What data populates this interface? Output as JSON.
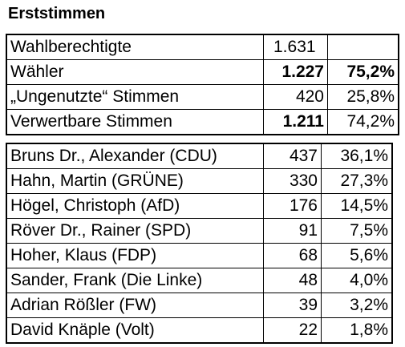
{
  "heading": "Erststimmen",
  "summary": [
    {
      "label": "Wahlberechtigte",
      "count": "1.631",
      "percent": "",
      "bold_count": false,
      "bold_percent": false
    },
    {
      "label": "Wähler",
      "count": "1.227",
      "percent": "75,2%",
      "bold_count": true,
      "bold_percent": true
    },
    {
      "label": "„Ungenutzte“ Stimmen",
      "count": "420",
      "percent": "25,8%",
      "bold_count": false,
      "bold_percent": false
    },
    {
      "label": "Verwertbare Stimmen",
      "count": "1.211",
      "percent": "74,2%",
      "bold_count": true,
      "bold_percent": false
    }
  ],
  "candidates": [
    {
      "label": "Bruns Dr., Alexander (CDU)",
      "count": "437",
      "percent": "36,1%"
    },
    {
      "label": "Hahn, Martin (GRÜNE)",
      "count": "330",
      "percent": "27,3%"
    },
    {
      "label": "Högel, Christoph (AfD)",
      "count": "176",
      "percent": "14,5%"
    },
    {
      "label": "Röver Dr., Rainer (SPD)",
      "count": "91",
      "percent": "7,5%"
    },
    {
      "label": "Hoher, Klaus (FDP)",
      "count": "68",
      "percent": "5,6%"
    },
    {
      "label": "Sander, Frank (Die Linke)",
      "count": "48",
      "percent": "4,0%"
    },
    {
      "label": "Adrian Rößler (FW)",
      "count": "39",
      "percent": "3,2%"
    },
    {
      "label": "David Knäple (Volt)",
      "count": "22",
      "percent": "1,8%"
    }
  ]
}
